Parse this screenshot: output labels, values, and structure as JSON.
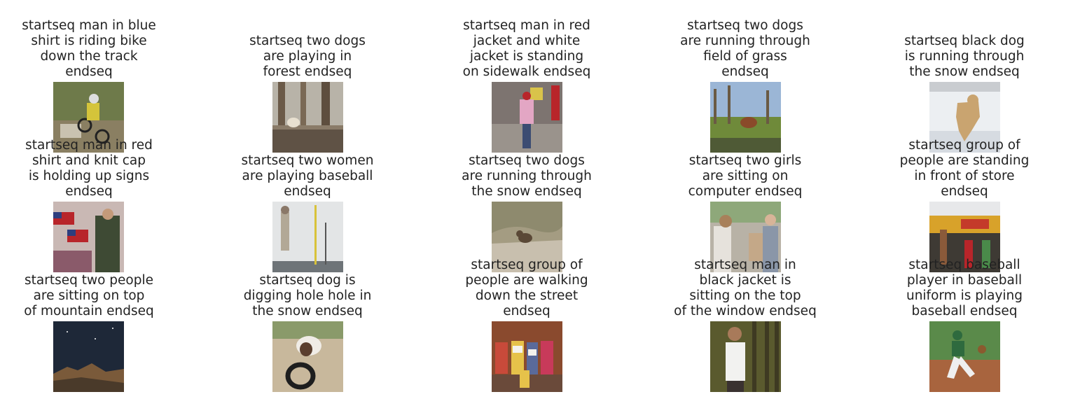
{
  "captions": [
    [
      "startseq man in blue\nshirt is riding bike\ndown the track\nendseq",
      "startseq two dogs\nare playing in\nforest endseq",
      "startseq man in red\njacket and white\njacket is standing\non sidewalk endseq",
      "startseq two dogs\nare running through\nfield of grass\nendseq",
      "startseq black dog\nis running through\nthe snow endseq"
    ],
    [
      "startseq man in red\nshirt and knit cap\nis holding up signs\nendseq",
      "startseq two women\nare playing baseball\nendseq",
      "startseq two dogs\nare running through\nthe snow endseq",
      "startseq two girls\nare sitting on\ncomputer endseq",
      "startseq group of\npeople are standing\nin front of store\nendseq"
    ],
    [
      "startseq two people\nare sitting on top\nof mountain endseq",
      "startseq dog is\ndigging hole hole in\nthe snow endseq",
      "startseq group of\npeople are walking\ndown the street\nendseq",
      "startseq man in\nblack jacket is\nsitting on the top\nof the window endseq",
      "startseq baseball\nplayer in baseball\nuniform is playing\nbaseball endseq"
    ]
  ]
}
